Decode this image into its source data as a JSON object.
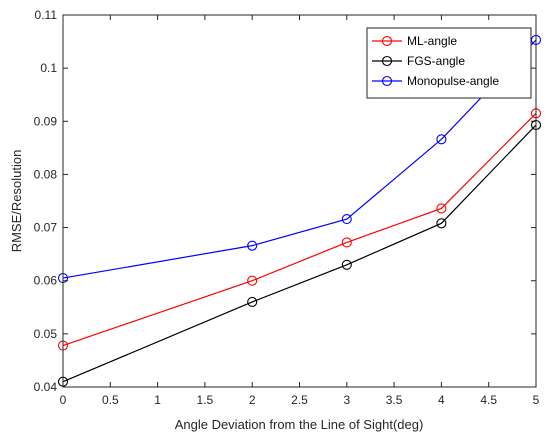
{
  "chart_data": {
    "type": "line",
    "title": "",
    "xlabel": "Angle Deviation from the Line of Sight(deg)",
    "ylabel": "RMSE/Resolution",
    "xlim": [
      0,
      5
    ],
    "ylim": [
      0.04,
      0.11
    ],
    "xticks": [
      0,
      0.5,
      1,
      1.5,
      2,
      2.5,
      3,
      3.5,
      4,
      4.5,
      5
    ],
    "xtick_labels": [
      "0",
      "0.5",
      "1",
      "1.5",
      "2",
      "2.5",
      "3",
      "3.5",
      "4",
      "4.5",
      "5"
    ],
    "yticks": [
      0.04,
      0.05,
      0.06,
      0.07,
      0.08,
      0.09,
      0.1,
      0.11
    ],
    "ytick_labels": [
      "0.04",
      "0.05",
      "0.06",
      "0.07",
      "0.08",
      "0.09",
      "0.1",
      "0.11"
    ],
    "grid": false,
    "legend_position": "top-right",
    "x": [
      0,
      2,
      3,
      4,
      5
    ],
    "series": [
      {
        "name": "ML-angle",
        "color": "#ff0000",
        "marker": "circle",
        "values": [
          0.0478,
          0.06,
          0.0672,
          0.0736,
          0.0915
        ]
      },
      {
        "name": "FGS-angle",
        "color": "#000000",
        "marker": "circle",
        "values": [
          0.041,
          0.056,
          0.063,
          0.0708,
          0.0893
        ]
      },
      {
        "name": "Monopulse-angle",
        "color": "#0000ff",
        "marker": "circle",
        "values": [
          0.0605,
          0.0666,
          0.0716,
          0.0866,
          0.1053
        ]
      }
    ]
  }
}
